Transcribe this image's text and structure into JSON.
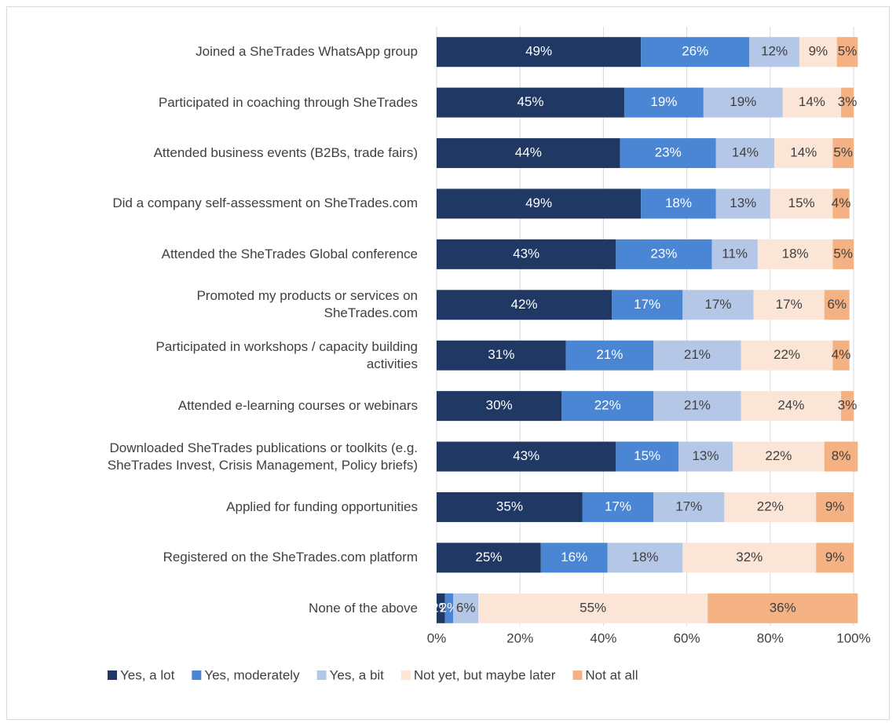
{
  "chart_data": {
    "type": "stacked_bar_horizontal",
    "categories": [
      "Joined a SheTrades WhatsApp group",
      "Participated in coaching through SheTrades",
      "Attended business events (B2Bs, trade fairs)",
      "Did a company self-assessment on SheTrades.com",
      "Attended the SheTrades Global conference",
      "Promoted my products or services on\nSheTrades.com",
      "Participated in workshops / capacity building\nactivities",
      "Attended e-learning courses or webinars",
      "Downloaded SheTrades publications or toolkits (e.g.\nSheTrades Invest, Crisis Management, Policy briefs)",
      "Applied for funding opportunities",
      "Registered on the SheTrades.com platform",
      "None of the above"
    ],
    "series": [
      {
        "name": "Yes, a lot",
        "color": "#1f3864",
        "values": [
          49,
          45,
          44,
          49,
          43,
          42,
          31,
          30,
          43,
          35,
          25,
          2
        ],
        "value_labels": [
          "49%",
          "45%",
          "44%",
          "49%",
          "43%",
          "42%",
          "31%",
          "30%",
          "43%",
          "35%",
          "25%",
          "2%"
        ]
      },
      {
        "name": "Yes, moderately",
        "color": "#4a86d4",
        "values": [
          26,
          19,
          23,
          18,
          23,
          17,
          21,
          22,
          15,
          17,
          16,
          2
        ],
        "value_labels": [
          "26%",
          "19%",
          "23%",
          "18%",
          "23%",
          "17%",
          "21%",
          "22%",
          "15%",
          "17%",
          "16%",
          "2%"
        ]
      },
      {
        "name": "Yes, a bit",
        "color": "#b4c7e7",
        "values": [
          12,
          19,
          14,
          13,
          11,
          17,
          21,
          21,
          13,
          17,
          18,
          6
        ],
        "value_labels": [
          "12%",
          "19%",
          "14%",
          "13%",
          "11%",
          "17%",
          "21%",
          "21%",
          "13%",
          "17%",
          "18%",
          "6%"
        ]
      },
      {
        "name": "Not yet, but maybe later",
        "color": "#fbe5d6",
        "values": [
          9,
          14,
          14,
          15,
          18,
          17,
          22,
          24,
          22,
          22,
          32,
          55
        ],
        "value_labels": [
          "9%",
          "14%",
          "14%",
          "15%",
          "18%",
          "17%",
          "22%",
          "24%",
          "22%",
          "22%",
          "32%",
          "55%"
        ]
      },
      {
        "name": "Not at all",
        "color": "#f4b183",
        "values": [
          5,
          3,
          5,
          4,
          5,
          6,
          4,
          3,
          8,
          9,
          9,
          36
        ],
        "value_labels": [
          "5%",
          "3%",
          "5%",
          "4%",
          "5%",
          "6%",
          "4%",
          "3%",
          "8%",
          "9%",
          "9%",
          "36%"
        ]
      }
    ],
    "xlim": [
      0,
      100
    ],
    "xticks": [
      {
        "value": 0,
        "label": "0%"
      },
      {
        "value": 20,
        "label": "20%"
      },
      {
        "value": 40,
        "label": "40%"
      },
      {
        "value": 60,
        "label": "60%"
      },
      {
        "value": 80,
        "label": "80%"
      },
      {
        "value": 100,
        "label": "100%"
      }
    ],
    "grid": true,
    "legend": "bottom"
  }
}
